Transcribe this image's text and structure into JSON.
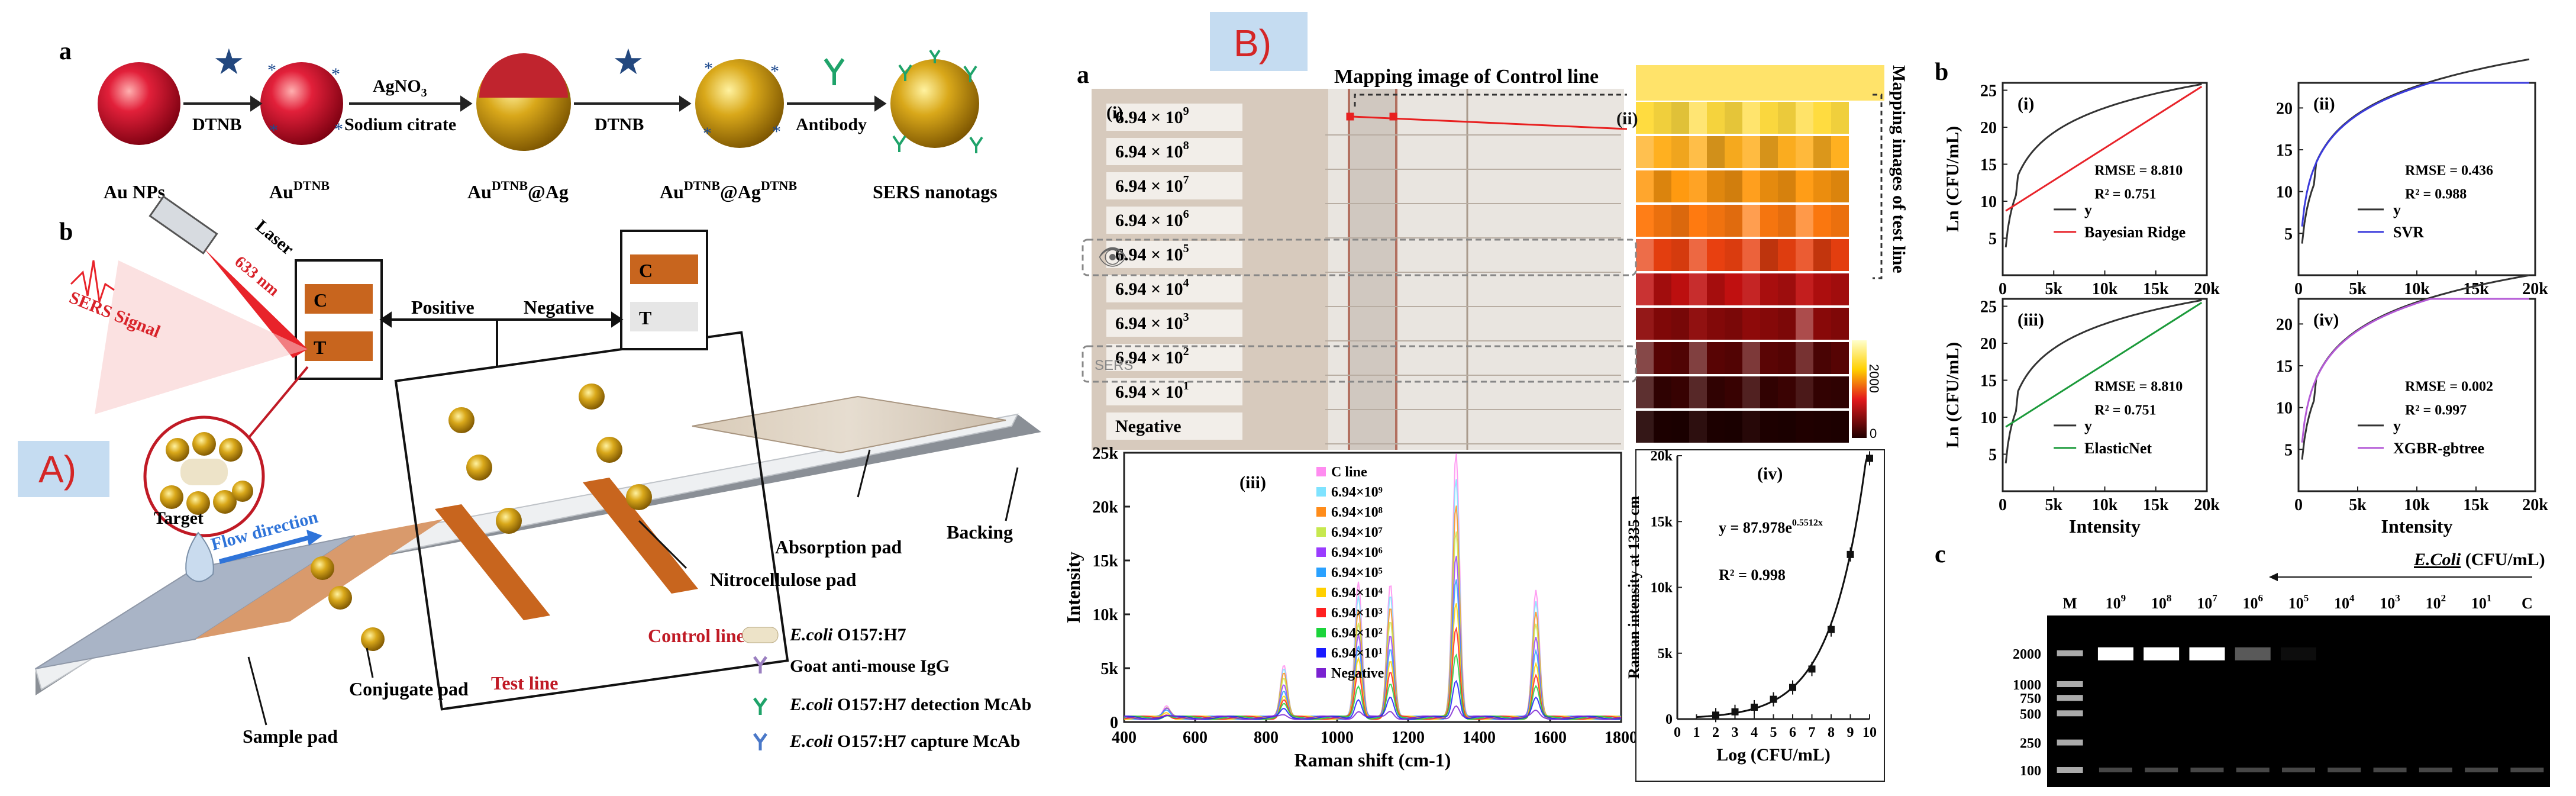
{
  "panelA": {
    "tag": "A)",
    "a_label": "a",
    "b_label": "b",
    "synthesis": {
      "particles": [
        "Au NPs",
        "Au",
        "Au",
        "Au",
        "SERS nanotags"
      ],
      "sup1": "DTNB",
      "sup2a": "DTNB",
      "mid2": "@Ag",
      "sup3a": "DTNB",
      "mid3": "@Ag",
      "sup3b": "DTNB",
      "arrows": [
        {
          "top": "",
          "bottom": "DTNB"
        },
        {
          "top": "AgNO",
          "top_sub": "3",
          "bottom": "Sodium citrate"
        },
        {
          "top": "",
          "bottom": "DTNB"
        },
        {
          "top": "",
          "bottom": "Antibody"
        }
      ]
    },
    "strip": {
      "laser": "Laser",
      "wavelength": "633 nm",
      "sers_signal": "SERS Signal",
      "positive": "Positive",
      "negative": "Negative",
      "c": "C",
      "t": "T",
      "target": "Target",
      "flow": "Flow direction",
      "absorption_pad": "Absorption pad",
      "backing": "Backing",
      "nitrocellulose_pad": "Nitrocellulose pad",
      "control_line": "Control line",
      "test_line": "Test line",
      "conjugate_pad": "Conjugate pad",
      "sample_pad": "Sample pad",
      "legend": [
        {
          "italic": "E.coli",
          "rest": " O157:H7"
        },
        {
          "italic": "",
          "rest": "Goat anti-mouse IgG"
        },
        {
          "italic": "E.coli",
          "rest": " O157:H7 detection McAb"
        },
        {
          "italic": "E.coli",
          "rest": " O157:H7 capture McAb"
        }
      ]
    }
  },
  "panelB": {
    "tag": "B)",
    "a_label": "a",
    "b_label": "b",
    "c_label": "c",
    "mapping_control": "Mapping image of Control line",
    "mapping_test": "Mapping images of test line",
    "sub_i": "(i)",
    "sub_ii": "(ii)",
    "sub_iii": "(iii)",
    "sub_iv": "(iv)",
    "eye_label": "eye",
    "sers_tag": "SERS",
    "strip_labels": [
      "6.94 × 10",
      "6.94 × 10",
      "6.94 × 10",
      "6.94 × 10",
      "6.94 × 10",
      "6.94 × 10",
      "6.94 × 10",
      "6.94 × 10",
      "6.94 × 10",
      "Negative"
    ],
    "strip_exps": [
      "9",
      "8",
      "7",
      "6",
      "5",
      "4",
      "3",
      "2",
      "1",
      ""
    ],
    "colorbar": {
      "max": "2000",
      "min": "0"
    }
  },
  "chart_data": [
    {
      "type": "line",
      "id": "raman-spectra",
      "xlabel": "Raman shift (cm-1)",
      "ylabel": "Intensity",
      "xlim": [
        400,
        1800
      ],
      "ylim": [
        0,
        25000
      ],
      "xticks": [
        "400",
        "600",
        "800",
        "1000",
        "1200",
        "1400",
        "1600",
        "1800"
      ],
      "yticks": [
        "0",
        "5k",
        "10k",
        "15k",
        "20k",
        "25k"
      ],
      "legend": [
        "C line",
        "6.94×10⁹",
        "6.94×10⁸",
        "6.94×10⁷",
        "6.94×10⁶",
        "6.94×10⁵",
        "6.94×10⁴",
        "6.94×10³",
        "6.94×10²",
        "6.94×10¹",
        "Negative"
      ],
      "legend_colors": [
        "#ff8cf0",
        "#7fe3ff",
        "#ff8c1a",
        "#c7e84f",
        "#9a3cff",
        "#2aa1ff",
        "#ffd000",
        "#ff2020",
        "#1bd43b",
        "#1a1aff",
        "#7a22d1"
      ],
      "peak_positions": [
        520,
        850,
        1060,
        1150,
        1335,
        1560
      ],
      "peak_heights_cline": [
        1200,
        5000,
        12500,
        12500,
        24500,
        12000
      ]
    },
    {
      "type": "scatter",
      "id": "calibration",
      "xlabel": "Log (CFU/mL)",
      "ylabel": "Raman intensity at 1335 cm",
      "equation": "y = 87.978e",
      "equation_exp": "0.5512x",
      "r2": "R² = 0.998",
      "xticks": [
        "0",
        "1",
        "2",
        "3",
        "4",
        "5",
        "6",
        "7",
        "8",
        "9",
        "10"
      ],
      "yticks": [
        "0",
        "5k",
        "10k",
        "15k",
        "20k"
      ],
      "xlim": [
        0,
        10
      ],
      "ylim": [
        0,
        20000
      ],
      "x": [
        2,
        3,
        4,
        5,
        6,
        7,
        8,
        9,
        10
      ],
      "y": [
        300,
        550,
        900,
        1500,
        2400,
        3800,
        6800,
        12500,
        19800
      ]
    },
    {
      "type": "line",
      "id": "ml-bayesian",
      "label": "(i)",
      "xlabel": "",
      "ylabel": "Ln (CFU/mL)",
      "xticks": [
        "0",
        "5k",
        "10k",
        "15k",
        "20k"
      ],
      "yticks": [
        "5",
        "10",
        "15",
        "20",
        "25"
      ],
      "xlim": [
        0,
        20000
      ],
      "ylim": [
        0,
        26
      ],
      "rmse": "RMSE = 8.810",
      "r2": "R² = 0.751",
      "legend": [
        "y",
        "Bayesian Ridge"
      ],
      "colors": [
        "#333333",
        "#e8232a"
      ]
    },
    {
      "type": "line",
      "id": "ml-svr",
      "label": "(ii)",
      "xticks": [
        "0",
        "5k",
        "10k",
        "15k",
        "20k"
      ],
      "yticks": [
        "5",
        "10",
        "15",
        "20"
      ],
      "xlim": [
        0,
        20000
      ],
      "ylim": [
        0,
        23
      ],
      "rmse": "RMSE = 0.436",
      "r2": "R² = 0.988",
      "legend": [
        "y",
        "SVR"
      ],
      "colors": [
        "#333333",
        "#3b3bdc"
      ]
    },
    {
      "type": "line",
      "id": "ml-elasticnet",
      "label": "(iii)",
      "xlabel": "Intensity",
      "ylabel": "Ln (CFU/mL)",
      "xticks": [
        "0",
        "5k",
        "10k",
        "15k",
        "20k"
      ],
      "yticks": [
        "5",
        "10",
        "15",
        "20",
        "25"
      ],
      "xlim": [
        0,
        20000
      ],
      "ylim": [
        0,
        26
      ],
      "rmse": "RMSE = 8.810",
      "r2": "R² = 0.751",
      "legend": [
        "y",
        "ElasticNet"
      ],
      "colors": [
        "#333333",
        "#1b9a3a"
      ]
    },
    {
      "type": "line",
      "id": "ml-xgbr",
      "label": "(iv)",
      "xlabel": "Intensity",
      "xticks": [
        "0",
        "5k",
        "10k",
        "15k",
        "20k"
      ],
      "yticks": [
        "5",
        "10",
        "15",
        "20"
      ],
      "xlim": [
        0,
        20000
      ],
      "ylim": [
        0,
        23
      ],
      "rmse": "RMSE = 0.002",
      "r2": "R² = 0.997",
      "legend": [
        "y",
        "XGBR-gbtree"
      ],
      "colors": [
        "#333333",
        "#b45ad6"
      ]
    },
    {
      "type": "table",
      "id": "gel",
      "title_italic": "E.Coli",
      "title_rest": " (CFU/mL)",
      "lanes": [
        "M",
        "10",
        "10",
        "10",
        "10",
        "10",
        "10",
        "10",
        "10",
        "10",
        "C"
      ],
      "lane_exps": [
        "",
        "9",
        "8",
        "7",
        "6",
        "5",
        "4",
        "3",
        "2",
        "1",
        ""
      ],
      "markers": [
        "2000",
        "1000",
        "750",
        "500",
        "250",
        "100"
      ],
      "band_intensity": [
        1,
        1,
        1,
        1,
        0.35,
        0.05,
        0,
        0,
        0,
        0,
        0
      ]
    }
  ]
}
